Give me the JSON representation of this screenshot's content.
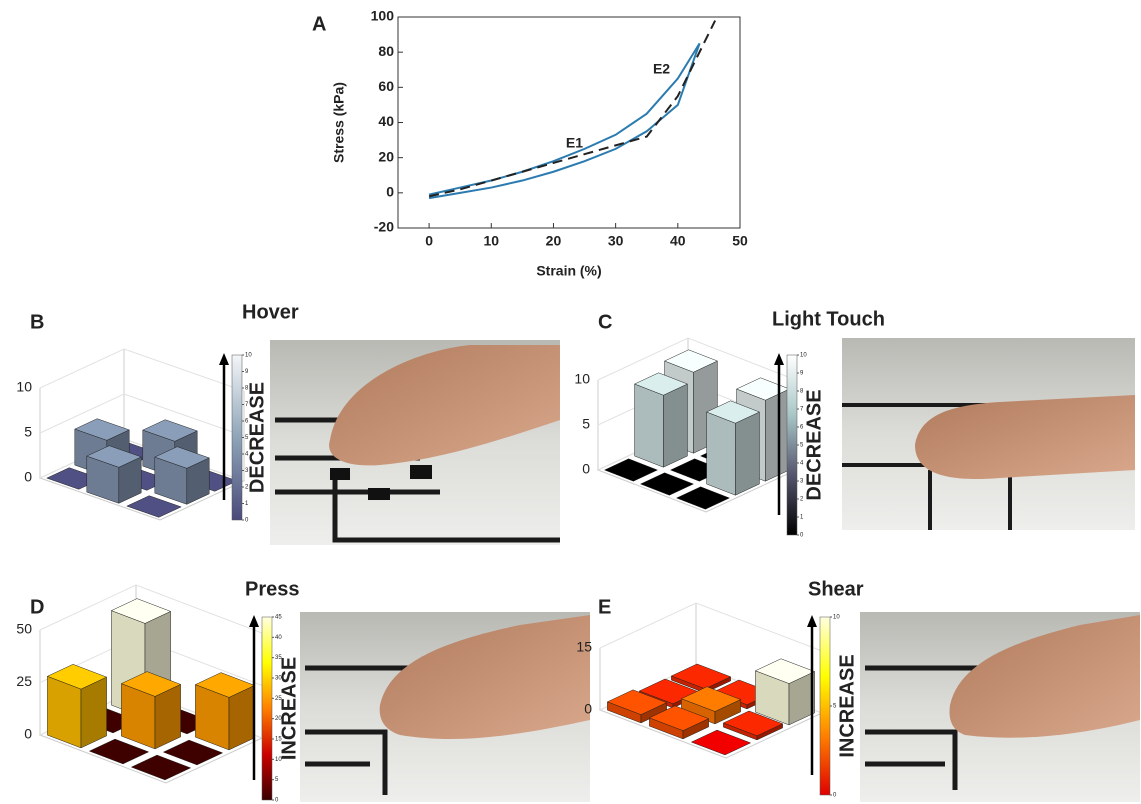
{
  "chart_data": [
    {
      "type": "line",
      "label": "A",
      "xlabel": "Strain (%)",
      "ylabel": "Stress (kPa)",
      "xlim": [
        -5,
        50
      ],
      "ylim": [
        -20,
        100
      ],
      "xticks": [
        0,
        10,
        20,
        30,
        40,
        50
      ],
      "yticks": [
        -20,
        0,
        20,
        40,
        60,
        80,
        100
      ],
      "annotations": [
        {
          "text": "E1",
          "x": 22,
          "y": 28
        },
        {
          "text": "E2",
          "x": 36,
          "y": 70
        }
      ],
      "series": [
        {
          "color": "#2b7bb0",
          "line_style": "solid",
          "x": [
            0,
            5,
            10,
            15,
            20,
            25,
            30,
            35,
            40,
            43.5
          ],
          "values": [
            -1,
            3,
            7,
            12,
            18,
            25,
            33,
            45,
            65,
            85
          ]
        },
        {
          "color": "#2b7bb0",
          "line_style": "solid",
          "x": [
            43.5,
            40,
            35,
            30,
            25,
            20,
            15,
            10,
            5,
            0
          ],
          "values": [
            85,
            50,
            35,
            25,
            18,
            12,
            7,
            3,
            0,
            -3
          ]
        },
        {
          "color": "#222222",
          "line_style": "dashed",
          "x": [
            0,
            5,
            10,
            20,
            30,
            35,
            40,
            46
          ],
          "values": [
            -2,
            2,
            7,
            17,
            27,
            32,
            55,
            98
          ]
        }
      ]
    },
    {
      "type": "bar3d",
      "label": "B",
      "title": "Hover",
      "zlim": [
        0,
        10
      ],
      "zticks": [
        0,
        5,
        10
      ],
      "values": [
        [
          0,
          4,
          0
        ],
        [
          4,
          0,
          4
        ],
        [
          0,
          4,
          0
        ]
      ],
      "colorbar": {
        "label": "DECREASE",
        "ticks": [
          0,
          1,
          2,
          3,
          4,
          5,
          6,
          7,
          8,
          9,
          10
        ],
        "colors": [
          "#4a4a7a",
          "#8ea4b8",
          "#f4f6f8"
        ]
      }
    },
    {
      "type": "bar3d",
      "label": "C",
      "title": "Light Touch",
      "zlim": [
        0,
        10
      ],
      "zticks": [
        0,
        5,
        10
      ],
      "values": [
        [
          0,
          0,
          0
        ],
        [
          8,
          0,
          8
        ],
        [
          9,
          0,
          9
        ]
      ],
      "colorbar": {
        "label": "DECREASE",
        "ticks": [
          0,
          1,
          2,
          3,
          4,
          5,
          6,
          7,
          8,
          9,
          10
        ],
        "colors": [
          "#000000",
          "#55556e",
          "#a8c6c6",
          "#ffffff"
        ]
      }
    },
    {
      "type": "bar3d",
      "label": "D",
      "title": "Press",
      "zlim": [
        0,
        50
      ],
      "zticks": [
        0,
        25,
        50
      ],
      "values": [
        [
          28,
          0,
          0
        ],
        [
          0,
          25,
          0
        ],
        [
          45,
          0,
          25
        ]
      ],
      "colorbar": {
        "label": "INCREASE",
        "ticks": [
          0,
          5,
          10,
          15,
          20,
          25,
          30,
          35,
          40,
          45
        ],
        "colors": [
          "#3a0000",
          "#cc0000",
          "#ff7f00",
          "#ffff00",
          "#ffffe0"
        ]
      }
    },
    {
      "type": "bar3d",
      "label": "E",
      "title": "Shear",
      "zlim": [
        0,
        15
      ],
      "zticks": [
        0,
        15
      ],
      "values": [
        [
          2,
          2,
          0
        ],
        [
          1,
          3,
          1
        ],
        [
          1,
          1,
          10
        ]
      ],
      "colorbar": {
        "label": "INCREASE",
        "ticks": [
          0,
          5,
          10
        ],
        "colors": [
          "#e00000",
          "#ff8000",
          "#ffff00",
          "#ffffe0"
        ]
      }
    }
  ]
}
